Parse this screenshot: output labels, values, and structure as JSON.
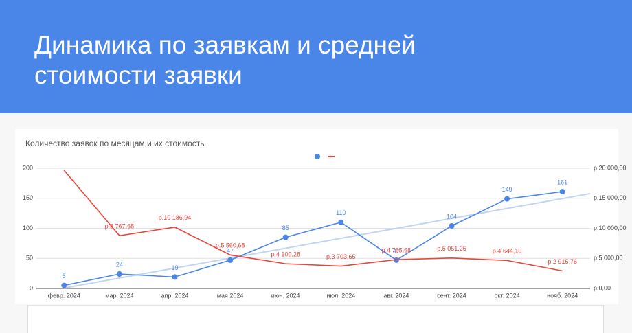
{
  "slide": {
    "title": "Динамика по заявкам и средней стоимости заявки"
  },
  "chart_data": {
    "type": "line",
    "title": "Количество заявок по месяцам и их стоимость",
    "categories": [
      "февр. 2024",
      "мар. 2024",
      "апр. 2024",
      "мая 2024",
      "июн. 2024",
      "июл. 2024",
      "авг. 2024",
      "сент. 2024",
      "окт. 2024",
      "нояб. 2024"
    ],
    "series": [
      {
        "color": "#4a86e8",
        "values": [
          5,
          24,
          19,
          47,
          85,
          110,
          47,
          104,
          149,
          161
        ],
        "markers": true,
        "trendline": true,
        "trendline_color": "#c2d4f2"
      },
      {
        "color": "#e8453c",
        "axis": "y2",
        "values": [
          19650,
          8767.68,
          10186.94,
          5560.68,
          4100.28,
          3703.65,
          4785.68,
          5051.25,
          4644.1,
          2915.76
        ],
        "value_labels": [
          null,
          "р.8 767,68",
          "р.10 186,94",
          "р.5 560,68",
          "р.4 100,28",
          "р.3 703,65",
          "р.4 785,68",
          "р.5 051,25",
          "р.4 644,10",
          "р.2 915,76"
        ]
      }
    ],
    "ylim": [
      0,
      200
    ],
    "yticks": [
      0,
      50,
      100,
      150,
      200
    ],
    "y2lim": [
      0,
      20000
    ],
    "y2ticks": [
      {
        "value": 0,
        "label": "р.0,00"
      },
      {
        "value": 5000,
        "label": "р.5 000,00"
      },
      {
        "value": 10000,
        "label": "р.10 000,00"
      },
      {
        "value": 15000,
        "label": "р.15 000,00"
      },
      {
        "value": 20000,
        "label": "р.20 000,00"
      }
    ],
    "grid": true,
    "legend": "top"
  }
}
